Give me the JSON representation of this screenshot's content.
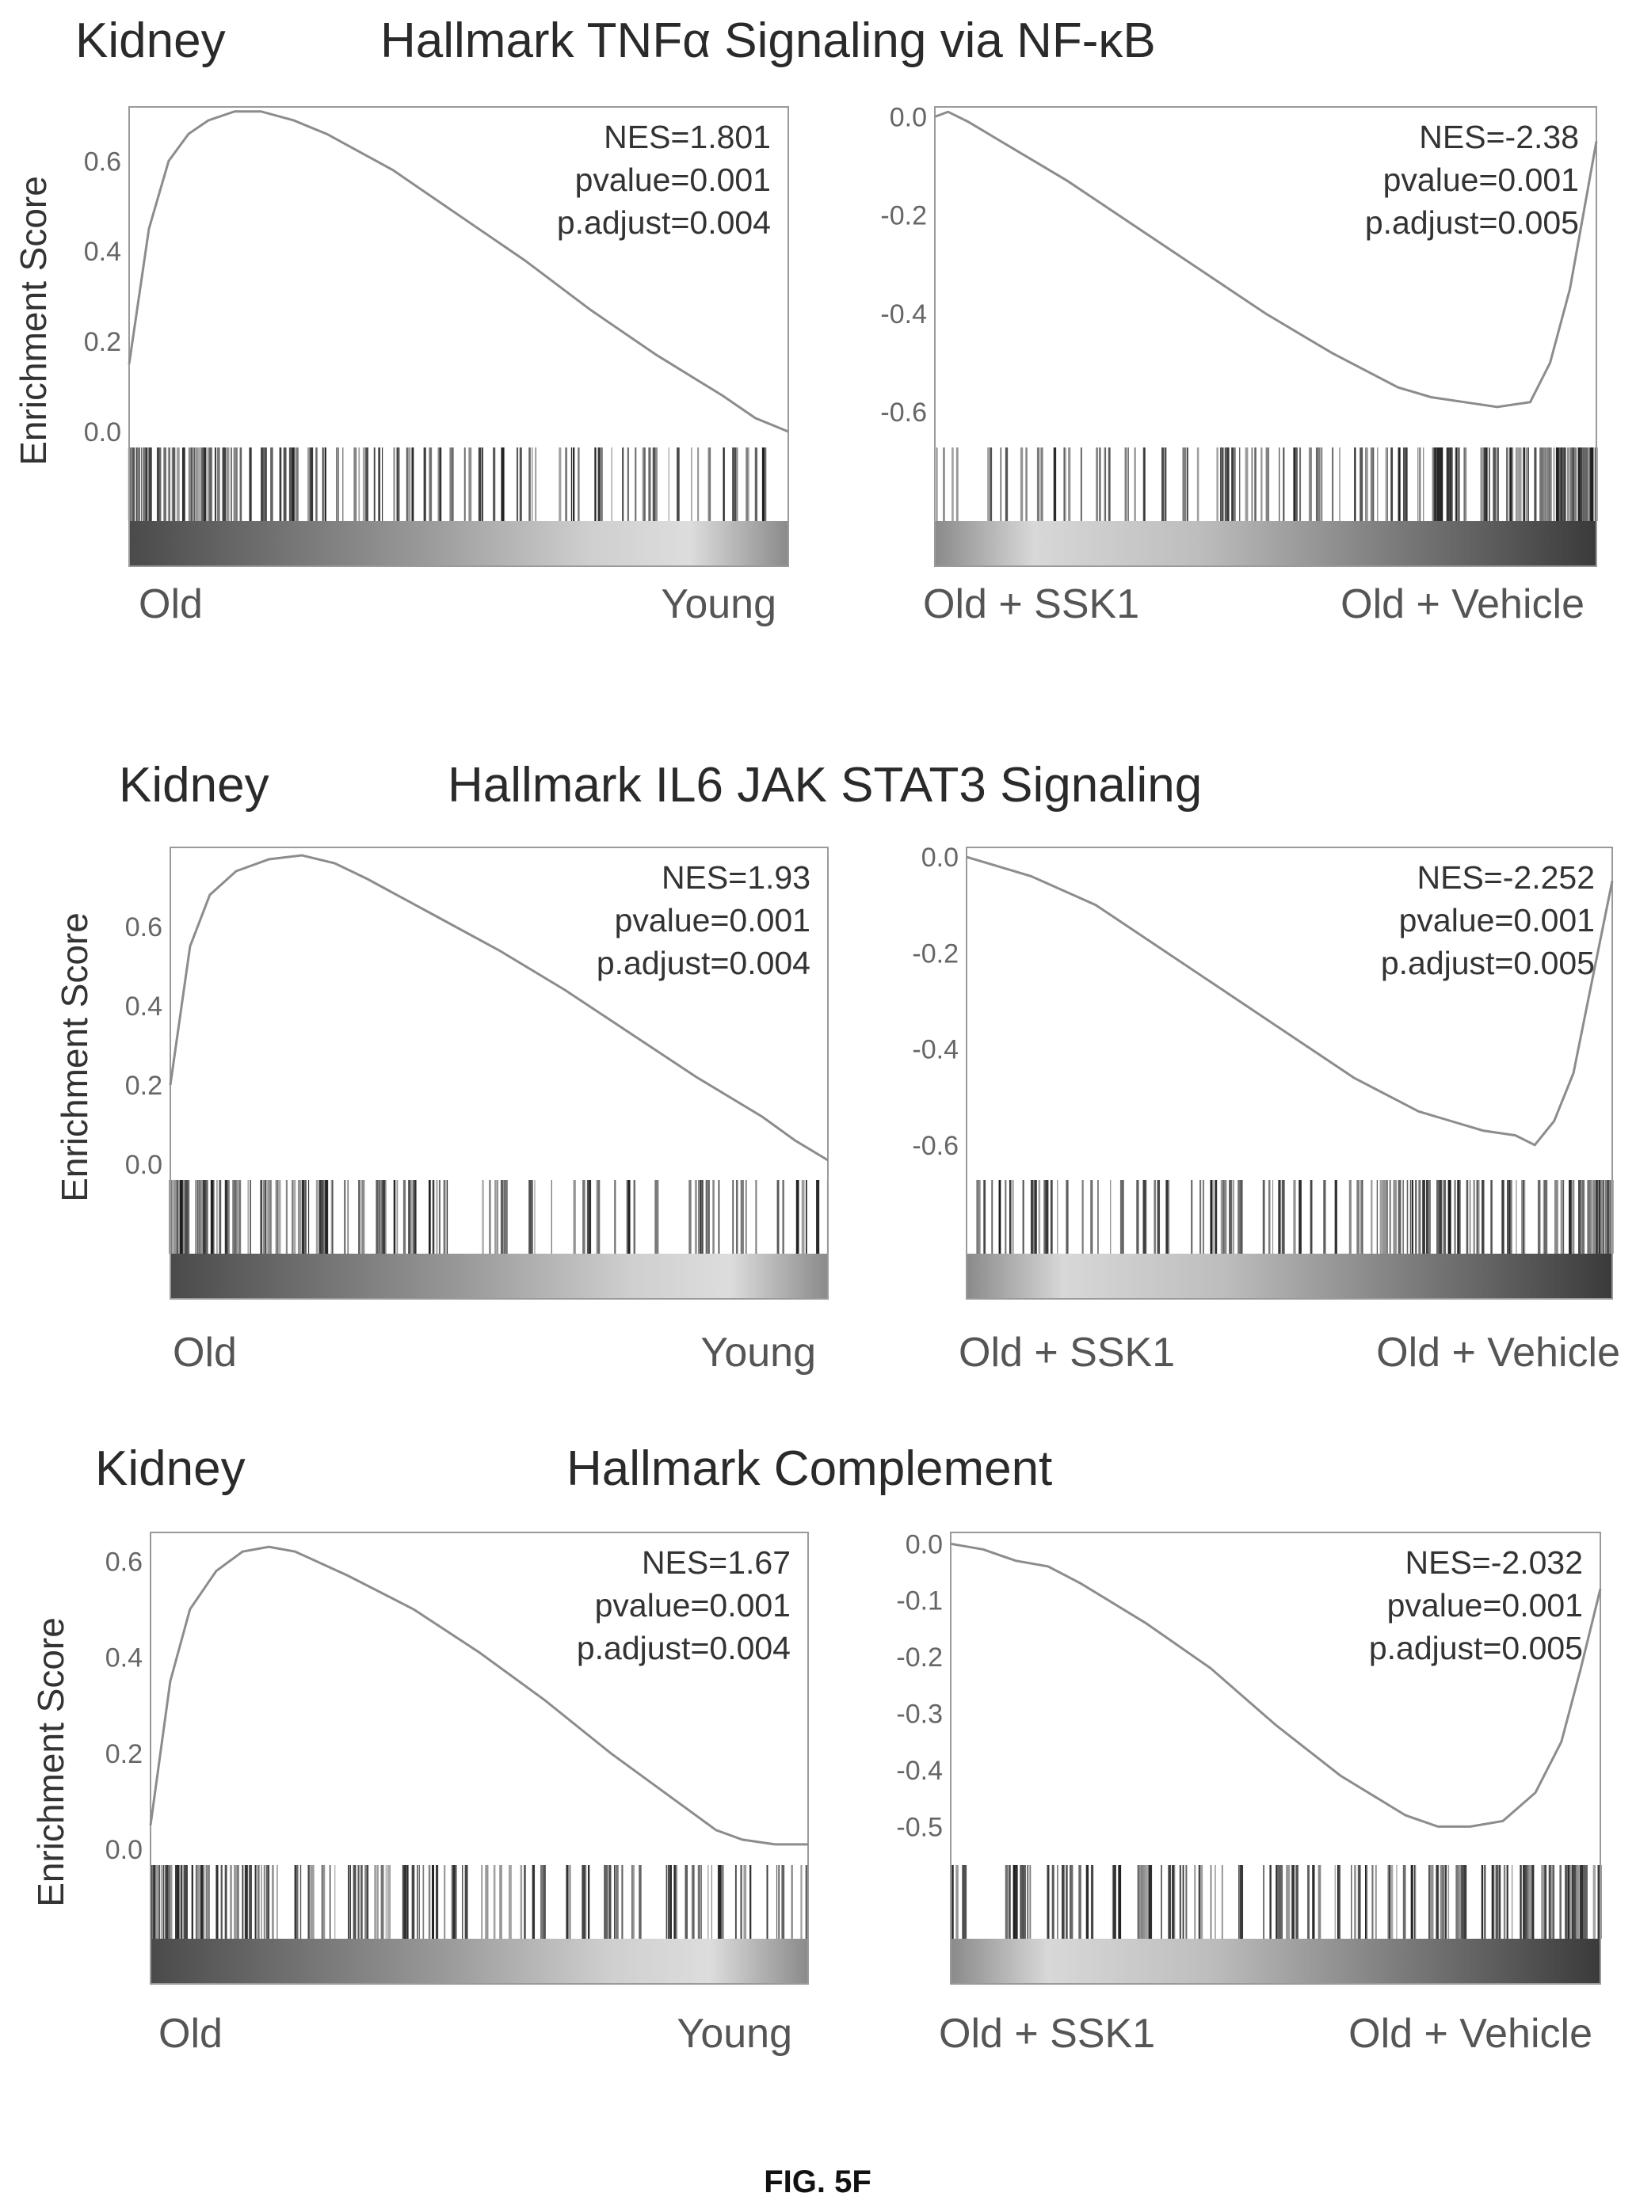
{
  "figure_label": "FIG. 5F",
  "chart_data": [
    {
      "type": "line",
      "tissue": "Kidney",
      "title": "Hallmark TNFα Signaling via NF-κB",
      "ylabel": "Enrichment Score",
      "ylim": [
        0.0,
        0.72
      ],
      "yticks": [
        "0.6",
        "0.4",
        "0.2",
        "0.0"
      ],
      "group_left": "Old",
      "group_right": "Young",
      "stats": [
        "NES=1.801",
        "pvalue=0.001",
        "p.adjust=0.004"
      ],
      "x": [
        0,
        0.03,
        0.06,
        0.09,
        0.12,
        0.16,
        0.2,
        0.25,
        0.3,
        0.4,
        0.5,
        0.6,
        0.7,
        0.8,
        0.9,
        0.95,
        1.0
      ],
      "y": [
        0.15,
        0.45,
        0.6,
        0.66,
        0.69,
        0.71,
        0.71,
        0.69,
        0.66,
        0.58,
        0.48,
        0.38,
        0.27,
        0.17,
        0.08,
        0.03,
        0.0
      ]
    },
    {
      "type": "line",
      "tissue": "",
      "title": "",
      "ylabel": "",
      "ylim": [
        -0.64,
        0.02
      ],
      "yticks": [
        "0.0",
        "-0.2",
        "-0.4",
        "-0.6"
      ],
      "group_left": "Old + SSK1",
      "group_right": "Old + Vehicle",
      "stats": [
        "NES=-2.38",
        "pvalue=0.001",
        "p.adjust=0.005"
      ],
      "x": [
        0,
        0.02,
        0.05,
        0.1,
        0.2,
        0.3,
        0.4,
        0.5,
        0.6,
        0.7,
        0.75,
        0.8,
        0.85,
        0.9,
        0.93,
        0.96,
        0.98,
        1.0
      ],
      "y": [
        0.0,
        0.01,
        -0.01,
        -0.05,
        -0.13,
        -0.22,
        -0.31,
        -0.4,
        -0.48,
        -0.55,
        -0.57,
        -0.58,
        -0.59,
        -0.58,
        -0.5,
        -0.35,
        -0.2,
        -0.05
      ]
    },
    {
      "type": "line",
      "tissue": "Kidney",
      "title": "Hallmark IL6 JAK STAT3 Signaling",
      "ylabel": "Enrichment Score",
      "ylim": [
        0.0,
        0.8
      ],
      "yticks": [
        "0.6",
        "0.4",
        "0.2",
        "0.0"
      ],
      "group_left": "Old",
      "group_right": "Young",
      "stats": [
        "NES=1.93",
        "pvalue=0.001",
        "p.adjust=0.004"
      ],
      "x": [
        0,
        0.03,
        0.06,
        0.1,
        0.15,
        0.2,
        0.25,
        0.3,
        0.4,
        0.5,
        0.6,
        0.7,
        0.8,
        0.9,
        0.95,
        1.0
      ],
      "y": [
        0.2,
        0.55,
        0.68,
        0.74,
        0.77,
        0.78,
        0.76,
        0.72,
        0.63,
        0.54,
        0.44,
        0.33,
        0.22,
        0.12,
        0.06,
        0.01
      ]
    },
    {
      "type": "line",
      "tissue": "",
      "title": "",
      "ylabel": "",
      "ylim": [
        -0.64,
        0.02
      ],
      "yticks": [
        "0.0",
        "-0.2",
        "-0.4",
        "-0.6"
      ],
      "group_left": "Old + SSK1",
      "group_right": "Old + Vehicle",
      "stats": [
        "NES=-2.252",
        "pvalue=0.001",
        "p.adjust=0.005"
      ],
      "x": [
        0,
        0.05,
        0.1,
        0.2,
        0.3,
        0.4,
        0.5,
        0.6,
        0.7,
        0.75,
        0.8,
        0.85,
        0.88,
        0.91,
        0.94,
        0.97,
        1.0
      ],
      "y": [
        0.0,
        -0.02,
        -0.04,
        -0.1,
        -0.19,
        -0.28,
        -0.37,
        -0.46,
        -0.53,
        -0.55,
        -0.57,
        -0.58,
        -0.6,
        -0.55,
        -0.45,
        -0.25,
        -0.05
      ]
    },
    {
      "type": "line",
      "tissue": "Kidney",
      "title": "Hallmark Complement",
      "ylabel": "Enrichment Score",
      "ylim": [
        0.0,
        0.66
      ],
      "yticks": [
        "0.6",
        "0.4",
        "0.2",
        "0.0"
      ],
      "group_left": "Old",
      "group_right": "Young",
      "stats": [
        "NES=1.67",
        "pvalue=0.001",
        "p.adjust=0.004"
      ],
      "x": [
        0,
        0.03,
        0.06,
        0.1,
        0.14,
        0.18,
        0.22,
        0.3,
        0.4,
        0.5,
        0.6,
        0.7,
        0.8,
        0.86,
        0.9,
        0.95,
        1.0
      ],
      "y": [
        0.05,
        0.35,
        0.5,
        0.58,
        0.62,
        0.63,
        0.62,
        0.57,
        0.5,
        0.41,
        0.31,
        0.2,
        0.1,
        0.04,
        0.02,
        0.01,
        0.01
      ]
    },
    {
      "type": "line",
      "tissue": "",
      "title": "",
      "ylabel": "",
      "ylim": [
        -0.54,
        0.02
      ],
      "yticks": [
        "0.0",
        "-0.1",
        "-0.2",
        "-0.3",
        "-0.4",
        "-0.5"
      ],
      "group_left": "Old + SSK1",
      "group_right": "Old + Vehicle",
      "stats": [
        "NES=-2.032",
        "pvalue=0.001",
        "p.adjust=0.005"
      ],
      "x": [
        0,
        0.05,
        0.1,
        0.15,
        0.2,
        0.3,
        0.4,
        0.5,
        0.6,
        0.7,
        0.75,
        0.8,
        0.85,
        0.9,
        0.94,
        0.97,
        1.0
      ],
      "y": [
        0.0,
        -0.01,
        -0.03,
        -0.04,
        -0.07,
        -0.14,
        -0.22,
        -0.32,
        -0.41,
        -0.48,
        -0.5,
        -0.5,
        -0.49,
        -0.44,
        -0.35,
        -0.22,
        -0.08
      ]
    }
  ]
}
